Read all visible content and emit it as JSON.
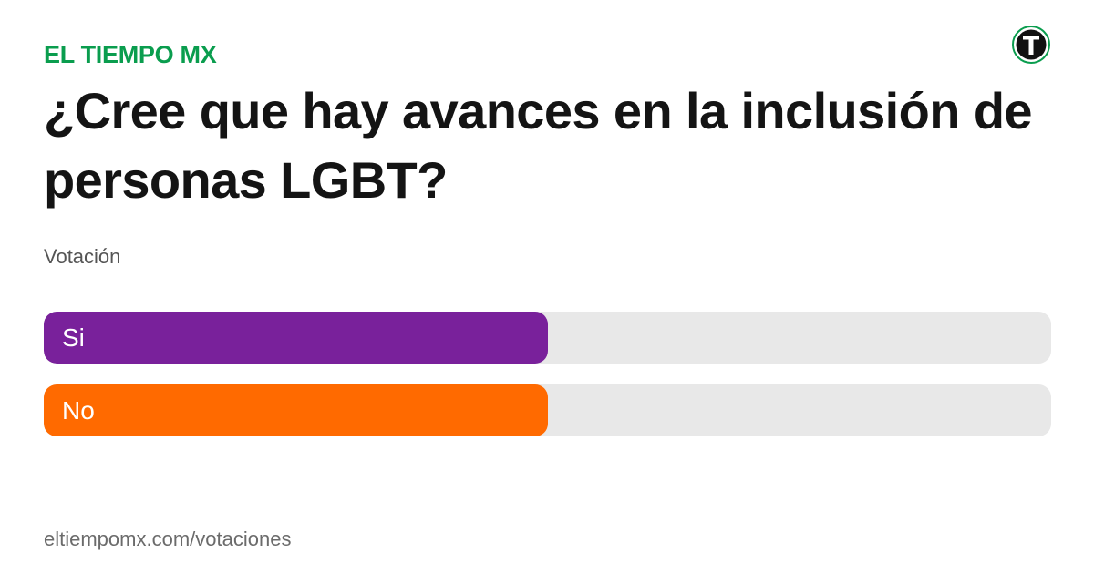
{
  "brand": {
    "name": "EL TIEMPO MX",
    "color": "#0a9d4e"
  },
  "logo": {
    "icon": "el-tiempo-logo-icon",
    "letter": "T",
    "colors": {
      "ring": "#0a9d4e",
      "disc": "#111111",
      "letter": "#ffffff"
    }
  },
  "poll": {
    "question": "¿Cree que hay avances en la inclusión de personas LGBT?",
    "kind": "Votación",
    "kind_color": "#555555",
    "track_color": "#e8e8e8",
    "options": [
      {
        "label": "Si",
        "fraction": 0.5,
        "color": "#79219b"
      },
      {
        "label": "No",
        "fraction": 0.5,
        "color": "#ff6a00"
      }
    ]
  },
  "footer": {
    "url": "eltiempomx.com/votaciones",
    "color": "#6b6b6b"
  }
}
